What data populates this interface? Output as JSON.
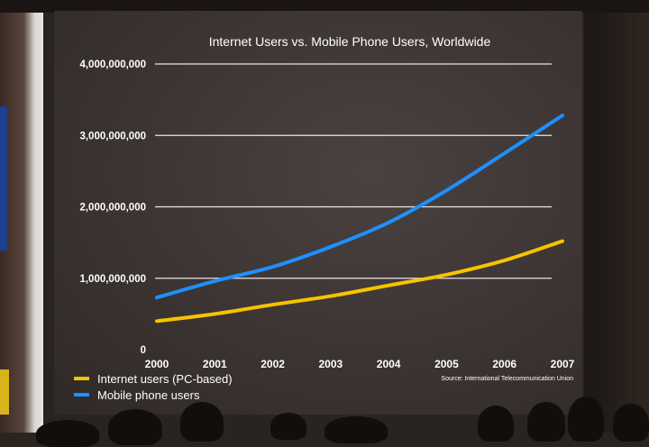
{
  "chart_data": {
    "type": "line",
    "title": "Internet Users vs. Mobile Phone Users, Worldwide",
    "xlabel": "",
    "ylabel": "",
    "x": [
      "2000",
      "2001",
      "2002",
      "2003",
      "2004",
      "2005",
      "2006",
      "2007"
    ],
    "xlim": [
      2000,
      2007
    ],
    "ylim": [
      0,
      4000000000
    ],
    "yticks": [
      0,
      1000000000,
      2000000000,
      3000000000,
      4000000000
    ],
    "ytick_labels": [
      "0",
      "1,000,000,000",
      "2,000,000,000",
      "3,000,000,000",
      "4,000,000,000"
    ],
    "grid": true,
    "legend": "bottom-left",
    "series": [
      {
        "name": "Internet users (PC-based)",
        "color": "#f5c400",
        "values": [
          400000000,
          500000000,
          630000000,
          750000000,
          900000000,
          1050000000,
          1250000000,
          1520000000
        ]
      },
      {
        "name": "Mobile phone users",
        "color": "#1e90ff",
        "values": [
          730000000,
          960000000,
          1160000000,
          1440000000,
          1780000000,
          2230000000,
          2750000000,
          3280000000
        ]
      }
    ],
    "source": "Source: International Telecommunication Union"
  },
  "colors": {
    "background": "#3b3432",
    "text": "#ffffff",
    "gridline": "#e6e6e6"
  }
}
